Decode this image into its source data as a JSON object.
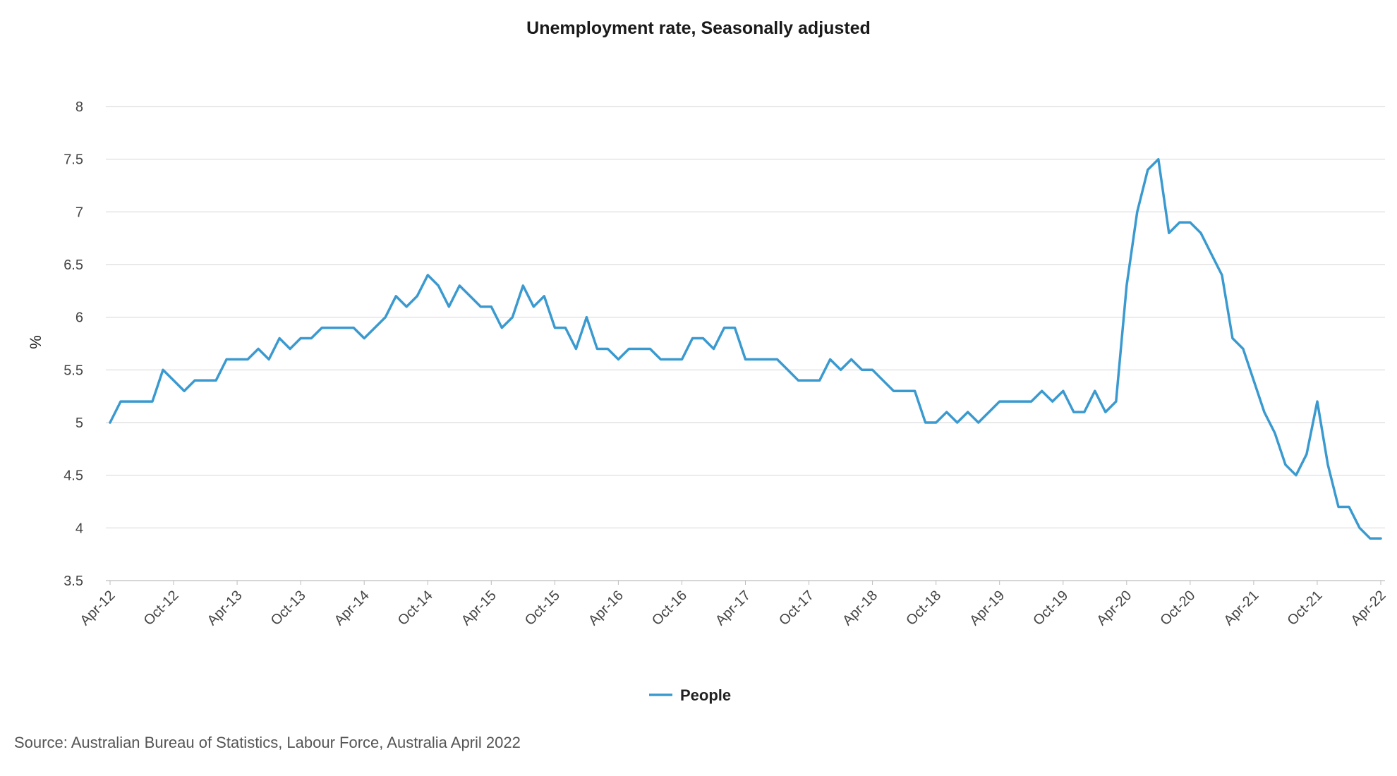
{
  "chart_data": {
    "type": "line",
    "title": "Unemployment rate, Seasonally adjusted",
    "xlabel": "",
    "ylabel": "%",
    "ylim": [
      3.5,
      8
    ],
    "yticks": [
      3.5,
      4,
      4.5,
      5,
      5.5,
      6,
      6.5,
      7,
      7.5,
      8
    ],
    "ytick_labels": [
      "3.5",
      "4",
      "4.5",
      "5",
      "5.5",
      "6",
      "6.5",
      "7",
      "7.5",
      "8"
    ],
    "grid": true,
    "legend": "bottom-center",
    "x_start": "Apr-12",
    "x_end": "Apr-22",
    "xtick_labels": [
      "Apr-12",
      "Oct-12",
      "Apr-13",
      "Oct-13",
      "Apr-14",
      "Oct-14",
      "Apr-15",
      "Oct-15",
      "Apr-16",
      "Oct-16",
      "Apr-17",
      "Oct-17",
      "Apr-18",
      "Oct-18",
      "Apr-19",
      "Oct-19",
      "Apr-20",
      "Oct-20",
      "Apr-21",
      "Oct-21",
      "Apr-22"
    ],
    "xtick_interval_months": 6,
    "series": [
      {
        "name": "People",
        "color": "#3a9ad0",
        "values": [
          5.0,
          5.2,
          5.2,
          5.2,
          5.2,
          5.5,
          5.4,
          5.3,
          5.4,
          5.4,
          5.4,
          5.6,
          5.6,
          5.6,
          5.7,
          5.6,
          5.8,
          5.7,
          5.8,
          5.8,
          5.9,
          5.9,
          5.9,
          5.9,
          5.8,
          5.9,
          6.0,
          6.2,
          6.1,
          6.2,
          6.4,
          6.3,
          6.1,
          6.3,
          6.2,
          6.1,
          6.1,
          5.9,
          6.0,
          6.3,
          6.1,
          6.2,
          5.9,
          5.9,
          5.7,
          6.0,
          5.7,
          5.7,
          5.6,
          5.7,
          5.7,
          5.7,
          5.6,
          5.6,
          5.6,
          5.8,
          5.8,
          5.7,
          5.9,
          5.9,
          5.6,
          5.6,
          5.6,
          5.6,
          5.5,
          5.4,
          5.4,
          5.4,
          5.6,
          5.5,
          5.6,
          5.5,
          5.5,
          5.4,
          5.3,
          5.3,
          5.3,
          5.0,
          5.0,
          5.1,
          5.0,
          5.1,
          5.0,
          5.1,
          5.2,
          5.2,
          5.2,
          5.2,
          5.3,
          5.2,
          5.3,
          5.1,
          5.1,
          5.3,
          5.1,
          5.2,
          6.3,
          7.0,
          7.4,
          7.5,
          6.8,
          6.9,
          6.9,
          6.8,
          6.6,
          6.4,
          5.8,
          5.7,
          5.4,
          5.1,
          4.9,
          4.6,
          4.5,
          4.7,
          5.2,
          4.6,
          4.2,
          4.2,
          4.0,
          3.9,
          3.9
        ]
      }
    ]
  },
  "source": "Source: Australian Bureau of Statistics, Labour Force, Australia April 2022"
}
